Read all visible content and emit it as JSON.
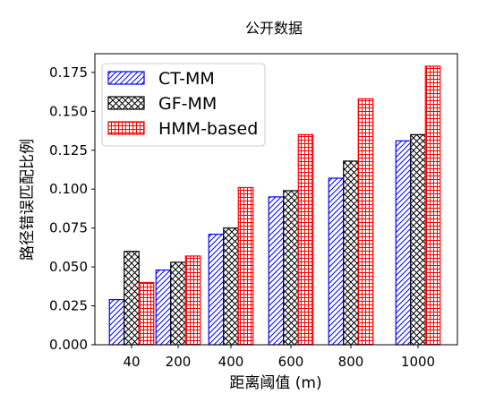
{
  "chart_data": {
    "type": "bar",
    "title": "公开数据",
    "xlabel": "距离阈值 (m)",
    "ylabel": "路径错误匹配比例",
    "categories": [
      "40",
      "200",
      "400",
      "600",
      "800",
      "1000"
    ],
    "ylim": [
      0,
      0.187
    ],
    "yticks": [
      "0.000",
      "0.025",
      "0.050",
      "0.075",
      "0.100",
      "0.125",
      "0.150",
      "0.175"
    ],
    "grid": false,
    "legend_position": "top-left",
    "series": [
      {
        "name": "CT-MM",
        "color": "#0000ff",
        "hatch": "diagonal",
        "values": [
          0.029,
          0.048,
          0.071,
          0.095,
          0.107,
          0.131
        ]
      },
      {
        "name": "GF-MM",
        "color": "#000000",
        "hatch": "cross",
        "values": [
          0.06,
          0.053,
          0.075,
          0.099,
          0.118,
          0.135
        ]
      },
      {
        "name": "HMM-based",
        "color": "#ff0000",
        "hatch": "grid",
        "values": [
          0.04,
          0.057,
          0.101,
          0.135,
          0.158,
          0.179
        ]
      }
    ]
  }
}
